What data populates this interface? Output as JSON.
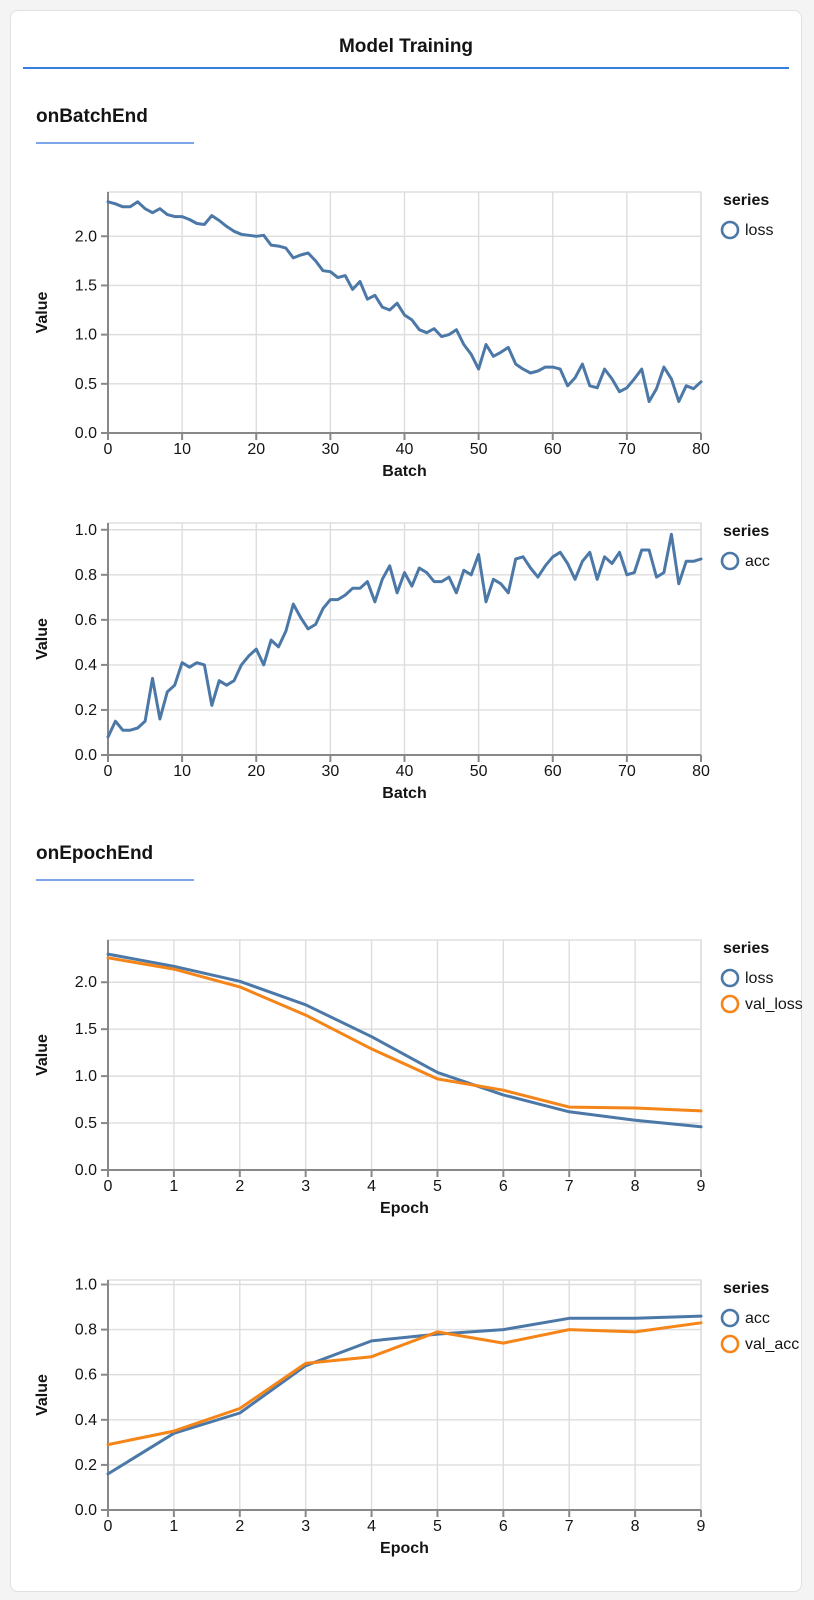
{
  "header": {
    "title": "Model Training",
    "divider_color": "#357edd"
  },
  "sections": [
    {
      "heading": "onBatchEnd",
      "underline_color": "#7da7ea"
    },
    {
      "heading": "onEpochEnd",
      "underline_color": "#7da7ea"
    }
  ],
  "colors": {
    "series_blue": "#4c78a8",
    "series_orange": "#f58518",
    "gridline": "#dddddd",
    "axis_domain": "#888888",
    "label_text": "#141414",
    "card_background": "#ffffff",
    "page_background": "#f4f4f5"
  },
  "chart_data": [
    {
      "type": "line",
      "surface": "onBatchEnd",
      "xlabel": "Batch",
      "ylabel": "Value",
      "xlim": [
        0,
        80
      ],
      "ylim": [
        0,
        2.45
      ],
      "xticks": [
        0,
        10,
        20,
        30,
        40,
        50,
        60,
        70,
        80
      ],
      "yticks": [
        0,
        0.5,
        1,
        1.5,
        2
      ],
      "xtick_decimals": 0,
      "ytick_decimals": 1,
      "grid": true,
      "legend_position": "right",
      "legend_title": "series",
      "series": [
        {
          "name": "loss",
          "color": "#4c78a8",
          "values": [
            2.35,
            2.33,
            2.3,
            2.3,
            2.35,
            2.28,
            2.24,
            2.28,
            2.22,
            2.2,
            2.2,
            2.17,
            2.13,
            2.12,
            2.21,
            2.16,
            2.1,
            2.05,
            2.02,
            2.01,
            2.0,
            2.01,
            1.91,
            1.9,
            1.88,
            1.78,
            1.81,
            1.83,
            1.75,
            1.65,
            1.64,
            1.58,
            1.6,
            1.46,
            1.54,
            1.36,
            1.4,
            1.28,
            1.25,
            1.32,
            1.2,
            1.15,
            1.05,
            1.02,
            1.06,
            0.98,
            1.0,
            1.05,
            0.9,
            0.8,
            0.65,
            0.9,
            0.78,
            0.82,
            0.87,
            0.7,
            0.65,
            0.61,
            0.63,
            0.67,
            0.67,
            0.65,
            0.48,
            0.56,
            0.7,
            0.48,
            0.46,
            0.65,
            0.55,
            0.42,
            0.46,
            0.55,
            0.65,
            0.32,
            0.45,
            0.67,
            0.55,
            0.32,
            0.48,
            0.45,
            0.52
          ]
        }
      ]
    },
    {
      "type": "line",
      "surface": "onBatchEnd",
      "xlabel": "Batch",
      "ylabel": "Value",
      "xlim": [
        0,
        80
      ],
      "ylim": [
        0,
        1.03
      ],
      "xticks": [
        0,
        10,
        20,
        30,
        40,
        50,
        60,
        70,
        80
      ],
      "yticks": [
        0,
        0.2,
        0.4,
        0.6,
        0.8,
        1
      ],
      "xtick_decimals": 0,
      "ytick_decimals": 1,
      "grid": true,
      "legend_position": "right",
      "legend_title": "series",
      "series": [
        {
          "name": "acc",
          "color": "#4c78a8",
          "values": [
            0.08,
            0.15,
            0.11,
            0.11,
            0.12,
            0.15,
            0.34,
            0.16,
            0.28,
            0.31,
            0.41,
            0.39,
            0.41,
            0.4,
            0.22,
            0.33,
            0.31,
            0.33,
            0.4,
            0.44,
            0.47,
            0.4,
            0.51,
            0.48,
            0.55,
            0.67,
            0.61,
            0.56,
            0.58,
            0.65,
            0.69,
            0.69,
            0.71,
            0.74,
            0.74,
            0.77,
            0.68,
            0.78,
            0.84,
            0.72,
            0.81,
            0.75,
            0.83,
            0.81,
            0.77,
            0.77,
            0.79,
            0.72,
            0.82,
            0.8,
            0.89,
            0.68,
            0.78,
            0.76,
            0.72,
            0.87,
            0.88,
            0.83,
            0.79,
            0.84,
            0.88,
            0.9,
            0.85,
            0.78,
            0.86,
            0.9,
            0.78,
            0.88,
            0.85,
            0.9,
            0.8,
            0.81,
            0.91,
            0.91,
            0.79,
            0.81,
            0.98,
            0.76,
            0.86,
            0.86,
            0.87
          ]
        }
      ]
    },
    {
      "type": "line",
      "surface": "onEpochEnd",
      "xlabel": "Epoch",
      "ylabel": "Value",
      "x": [
        0,
        1,
        2,
        3,
        4,
        5,
        6,
        7,
        8,
        9
      ],
      "xlim": [
        0,
        9
      ],
      "ylim": [
        0,
        2.45
      ],
      "xticks": [
        0,
        1,
        2,
        3,
        4,
        5,
        6,
        7,
        8,
        9
      ],
      "yticks": [
        0,
        0.5,
        1,
        1.5,
        2
      ],
      "xtick_decimals": 0,
      "ytick_decimals": 1,
      "grid": true,
      "legend_position": "right",
      "legend_title": "series",
      "series": [
        {
          "name": "loss",
          "color": "#4c78a8",
          "values": [
            2.3,
            2.17,
            2.01,
            1.76,
            1.42,
            1.04,
            0.8,
            0.62,
            0.53,
            0.46
          ]
        },
        {
          "name": "val_loss",
          "color": "#f58518",
          "values": [
            2.26,
            2.14,
            1.95,
            1.65,
            1.29,
            0.97,
            0.85,
            0.67,
            0.66,
            0.63
          ]
        }
      ]
    },
    {
      "type": "line",
      "surface": "onEpochEnd",
      "xlabel": "Epoch",
      "ylabel": "Value",
      "x": [
        0,
        1,
        2,
        3,
        4,
        5,
        6,
        7,
        8,
        9
      ],
      "xlim": [
        0,
        9
      ],
      "ylim": [
        0,
        1.02
      ],
      "xticks": [
        0,
        1,
        2,
        3,
        4,
        5,
        6,
        7,
        8,
        9
      ],
      "yticks": [
        0,
        0.2,
        0.4,
        0.6,
        0.8,
        1
      ],
      "xtick_decimals": 0,
      "ytick_decimals": 1,
      "grid": true,
      "legend_position": "right",
      "legend_title": "series",
      "series": [
        {
          "name": "acc",
          "color": "#4c78a8",
          "values": [
            0.16,
            0.34,
            0.43,
            0.64,
            0.75,
            0.78,
            0.8,
            0.85,
            0.85,
            0.86
          ]
        },
        {
          "name": "val_acc",
          "color": "#f58518",
          "values": [
            0.29,
            0.35,
            0.45,
            0.65,
            0.68,
            0.79,
            0.74,
            0.8,
            0.79,
            0.83
          ]
        }
      ]
    }
  ]
}
